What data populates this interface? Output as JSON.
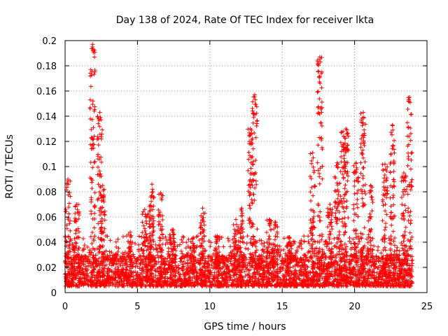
{
  "chart_data": {
    "type": "scatter",
    "title": "Day 138 of 2024, Rate Of TEC Index for receiver lkta",
    "xlabel": "GPS time / hours",
    "ylabel": "ROTI / TECUs",
    "xlim": [
      0,
      25
    ],
    "ylim": [
      0,
      0.2
    ],
    "xticks": [
      "0",
      "5",
      "10",
      "15",
      "20",
      "25"
    ],
    "yticks": [
      "0",
      "0.02",
      "0.04",
      "0.06",
      "0.08",
      "0.1",
      "0.12",
      "0.14",
      "0.16",
      "0.18",
      "0.2"
    ],
    "grid": true,
    "marker": "+",
    "color": "#ff0000",
    "x_range_hours": [
      0,
      24
    ],
    "baseline_range": [
      0.005,
      0.03
    ],
    "bursts": [
      {
        "t": 0.2,
        "peak": 0.09
      },
      {
        "t": 0.8,
        "peak": 0.07
      },
      {
        "t": 1.9,
        "peak": 0.197
      },
      {
        "t": 2.4,
        "peak": 0.143
      },
      {
        "t": 2.6,
        "peak": 0.085
      },
      {
        "t": 4.5,
        "peak": 0.048
      },
      {
        "t": 5.5,
        "peak": 0.066
      },
      {
        "t": 5.9,
        "peak": 0.065
      },
      {
        "t": 6.0,
        "peak": 0.086
      },
      {
        "t": 6.6,
        "peak": 0.079
      },
      {
        "t": 7.4,
        "peak": 0.05
      },
      {
        "t": 8.8,
        "peak": 0.043
      },
      {
        "t": 9.5,
        "peak": 0.067
      },
      {
        "t": 10.5,
        "peak": 0.045
      },
      {
        "t": 11.8,
        "peak": 0.058
      },
      {
        "t": 12.2,
        "peak": 0.067
      },
      {
        "t": 12.8,
        "peak": 0.13
      },
      {
        "t": 13.1,
        "peak": 0.157
      },
      {
        "t": 14.1,
        "peak": 0.058
      },
      {
        "t": 14.5,
        "peak": 0.056
      },
      {
        "t": 15.5,
        "peak": 0.044
      },
      {
        "t": 17.1,
        "peak": 0.111
      },
      {
        "t": 17.6,
        "peak": 0.187
      },
      {
        "t": 18.3,
        "peak": 0.07
      },
      {
        "t": 18.8,
        "peak": 0.103
      },
      {
        "t": 19.2,
        "peak": 0.128
      },
      {
        "t": 19.4,
        "peak": 0.13
      },
      {
        "t": 20.1,
        "peak": 0.103
      },
      {
        "t": 20.6,
        "peak": 0.143
      },
      {
        "t": 21.1,
        "peak": 0.085
      },
      {
        "t": 22.1,
        "peak": 0.102
      },
      {
        "t": 22.6,
        "peak": 0.133
      },
      {
        "t": 23.4,
        "peak": 0.095
      },
      {
        "t": 23.8,
        "peak": 0.155
      }
    ]
  }
}
